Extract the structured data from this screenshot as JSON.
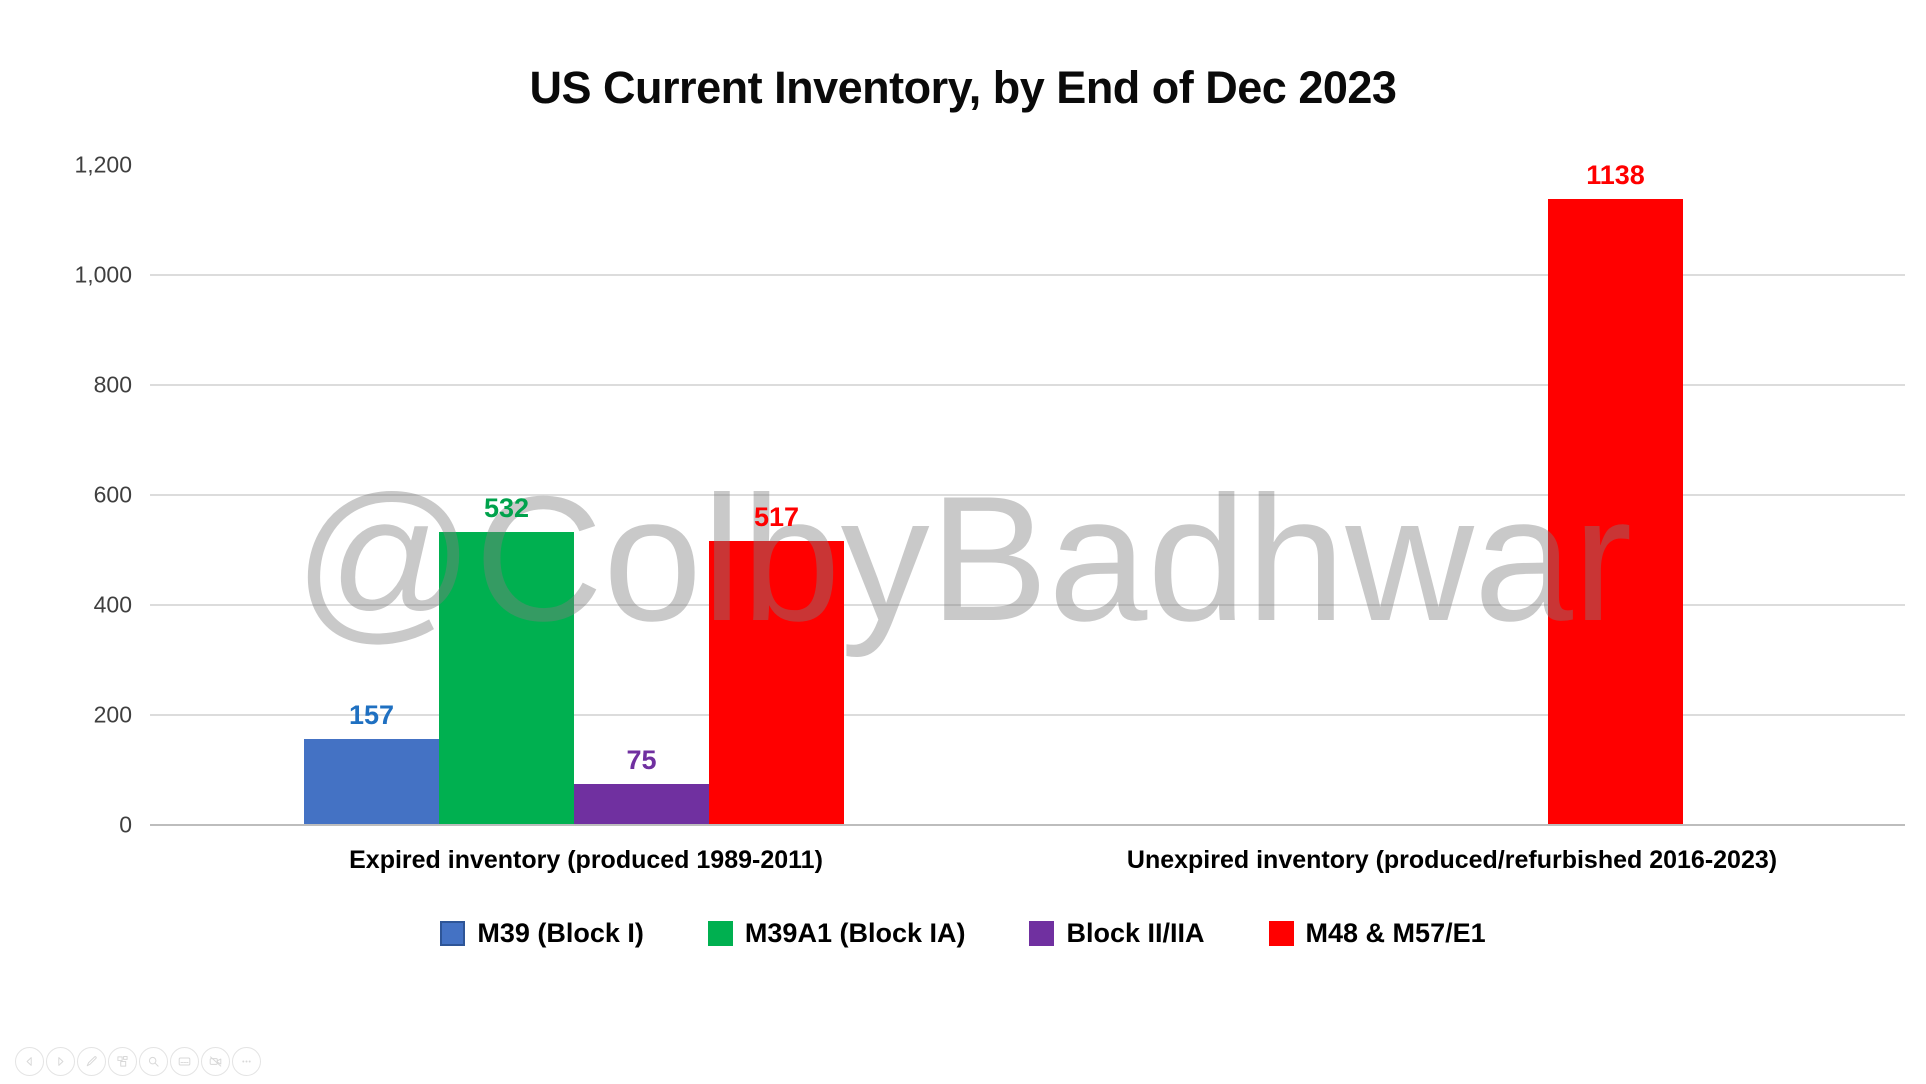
{
  "title": "US Current Inventory, by End of Dec 2023",
  "watermark": "@ColbyBadhwar",
  "chart_data": {
    "type": "bar",
    "title": "US Current Inventory, by End of Dec 2023",
    "categories": [
      "Expired inventory (produced 1989-2011)",
      "Unexpired inventory (produced/refurbished 2016-2023)"
    ],
    "series": [
      {
        "name": "M39 (Block I)",
        "color": "#4472C4",
        "label_color": "#1F70C1",
        "swatch_border": "#2E5597",
        "values": [
          157,
          null
        ]
      },
      {
        "name": "M39A1 (Block IA)",
        "color": "#00B050",
        "label_color": "#00A24C",
        "swatch_border": null,
        "values": [
          532,
          null
        ]
      },
      {
        "name": "Block II/IIA",
        "color": "#7030A0",
        "label_color": "#7030A0",
        "swatch_border": null,
        "values": [
          75,
          null
        ]
      },
      {
        "name": "M48 & M57/E1",
        "color": "#FF0000",
        "label_color": "#FF0000",
        "swatch_border": null,
        "values": [
          517,
          1138
        ]
      }
    ],
    "ylim": [
      0,
      1200
    ],
    "yticks": [
      {
        "value": 0,
        "label": "0"
      },
      {
        "value": 200,
        "label": "200"
      },
      {
        "value": 400,
        "label": "400"
      },
      {
        "value": 600,
        "label": "600"
      },
      {
        "value": 800,
        "label": "800"
      },
      {
        "value": 1000,
        "label": "1,000"
      },
      {
        "value": 1200,
        "label": "1,200"
      }
    ],
    "grid": true,
    "legend_position": "bottom",
    "gridline_color": "#DCDCDC",
    "axis_line_color": "#BDBDBD",
    "tick_text_color": "#3F3F3F",
    "watermark_color": "#7F7F7F"
  },
  "toolbar": {
    "icons": [
      {
        "name": "previous-slide"
      },
      {
        "name": "next-slide"
      },
      {
        "name": "pen"
      },
      {
        "name": "all-slides"
      },
      {
        "name": "zoom"
      },
      {
        "name": "captions"
      },
      {
        "name": "camera-off"
      },
      {
        "name": "more-options"
      }
    ]
  }
}
